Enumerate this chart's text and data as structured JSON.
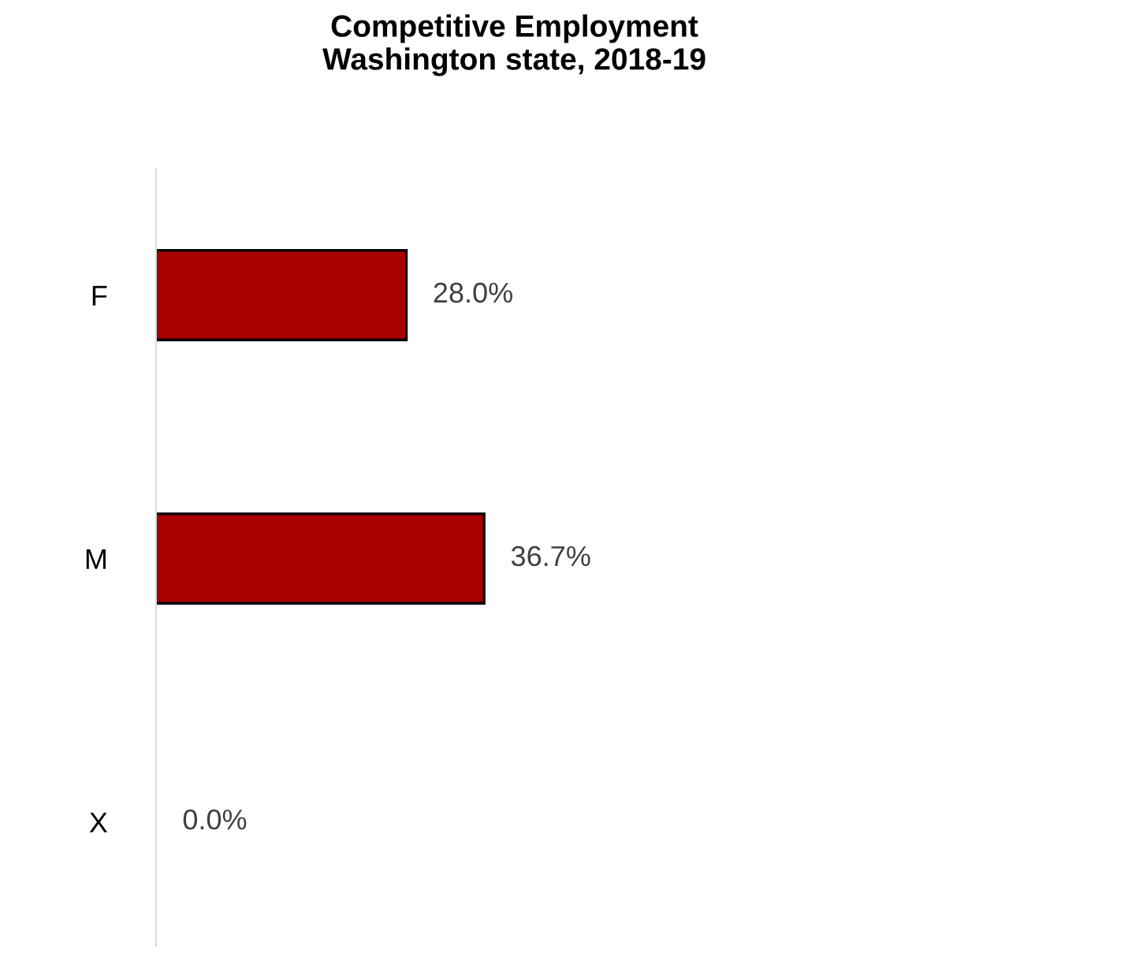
{
  "chart_data": {
    "type": "bar",
    "orientation": "horizontal",
    "title": "Competitive Employment\nWashington state, 2018-19",
    "categories": [
      "F",
      "M",
      "X"
    ],
    "values": [
      28.0,
      36.7,
      0.0
    ],
    "value_labels": [
      "28.0%",
      "36.7%",
      "0.0%"
    ],
    "color": "#a80000",
    "grid": false,
    "legend": false
  }
}
